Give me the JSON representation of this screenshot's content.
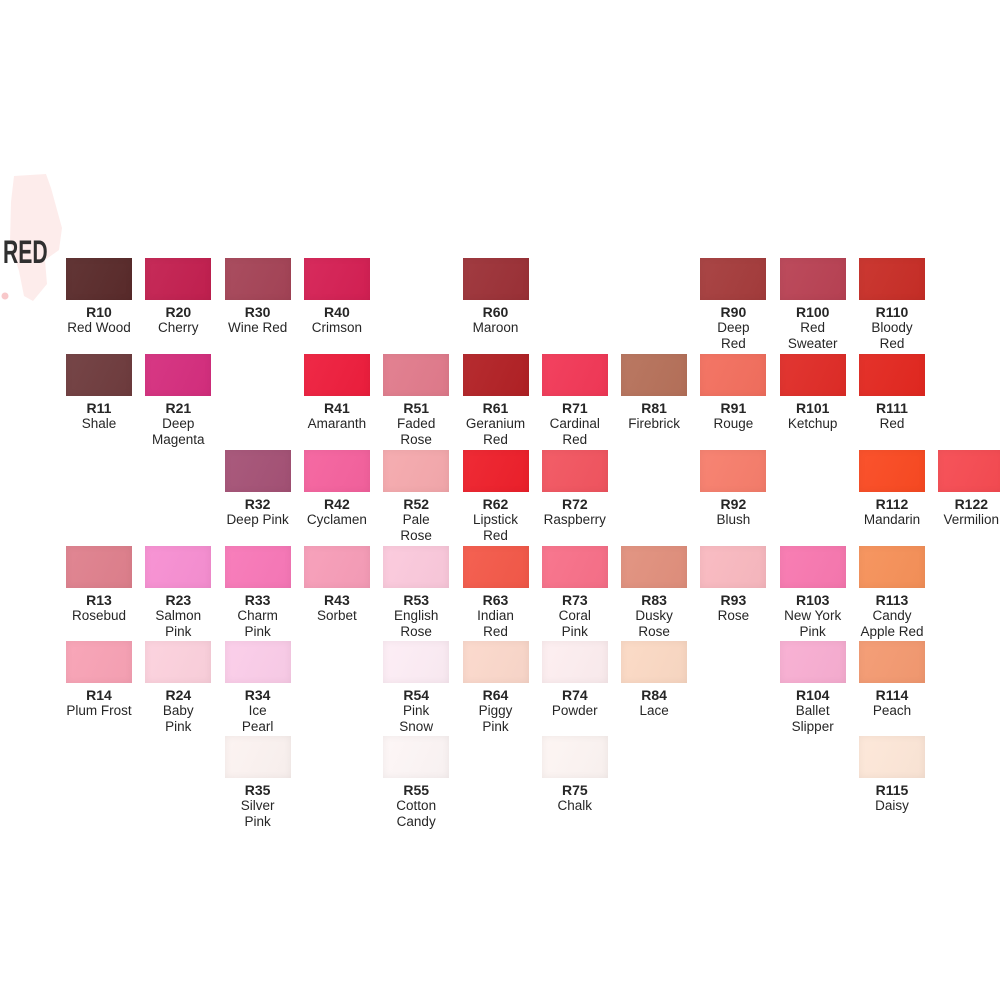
{
  "header": {
    "label": "RED",
    "text_color": "#2f2f2f",
    "blob_color": "#fdeceb",
    "blob_speck_color": "#f8c8ca"
  },
  "grid": {
    "columns": 12,
    "col_start": 66,
    "col_pitch": 79.3,
    "row_starts": [
      258,
      354,
      450,
      546,
      641,
      736
    ],
    "swatch_w": 66,
    "swatch_h": 42
  },
  "chart_data": {
    "type": "table",
    "title": "RED",
    "columns": [
      "code",
      "name",
      "color",
      "row",
      "col"
    ],
    "swatches": [
      {
        "code": "R10",
        "name": "Red Wood",
        "color": "#5a2b2b",
        "row": 1,
        "col": 1
      },
      {
        "code": "R20",
        "name": "Cherry",
        "color": "#c32050",
        "row": 1,
        "col": 2
      },
      {
        "code": "R30",
        "name": "Wine Red",
        "color": "#a54457",
        "row": 1,
        "col": 3
      },
      {
        "code": "R40",
        "name": "Crimson",
        "color": "#d52054",
        "row": 1,
        "col": 4
      },
      {
        "code": "R60",
        "name": "Maroon",
        "color": "#9c3137",
        "row": 1,
        "col": 6
      },
      {
        "code": "R90",
        "name": "Deep\nRed",
        "color": "#a53c3c",
        "row": 1,
        "col": 9
      },
      {
        "code": "R100",
        "name": "Red\nSweater",
        "color": "#b94254",
        "row": 1,
        "col": 10
      },
      {
        "code": "R110",
        "name": "Bloody\nRed",
        "color": "#c82e27",
        "row": 1,
        "col": 11
      },
      {
        "code": "R11",
        "name": "Shale",
        "color": "#6f3c3e",
        "row": 2,
        "col": 1
      },
      {
        "code": "R21",
        "name": "Deep\nMagenta",
        "color": "#d52e7e",
        "row": 2,
        "col": 2
      },
      {
        "code": "R41",
        "name": "Amaranth",
        "color": "#ee1e3d",
        "row": 2,
        "col": 4
      },
      {
        "code": "R51",
        "name": "Faded\nRose",
        "color": "#e17b8c",
        "row": 2,
        "col": 5
      },
      {
        "code": "R61",
        "name": "Geranium\nRed",
        "color": "#b22125",
        "row": 2,
        "col": 6
      },
      {
        "code": "R71",
        "name": "Cardinal\nRed",
        "color": "#f23857",
        "row": 2,
        "col": 7
      },
      {
        "code": "R81",
        "name": "Firebrick",
        "color": "#b6715a",
        "row": 2,
        "col": 8
      },
      {
        "code": "R91",
        "name": "Rouge",
        "color": "#f36f5e",
        "row": 2,
        "col": 9
      },
      {
        "code": "R101",
        "name": "Ketchup",
        "color": "#e02c27",
        "row": 2,
        "col": 10
      },
      {
        "code": "R111",
        "name": "Red",
        "color": "#e32820",
        "row": 2,
        "col": 11
      },
      {
        "code": "R32",
        "name": "Deep Pink",
        "color": "#a55276",
        "row": 3,
        "col": 3
      },
      {
        "code": "R42",
        "name": "Cyclamen",
        "color": "#f5629e",
        "row": 3,
        "col": 4
      },
      {
        "code": "R52",
        "name": "Pale\nRose",
        "color": "#f5a9ad",
        "row": 3,
        "col": 5
      },
      {
        "code": "R62",
        "name": "Lipstick\nRed",
        "color": "#ee202b",
        "row": 3,
        "col": 6
      },
      {
        "code": "R72",
        "name": "Raspberry",
        "color": "#f25560",
        "row": 3,
        "col": 7
      },
      {
        "code": "R92",
        "name": "Blush",
        "color": "#f77e6c",
        "row": 3,
        "col": 9
      },
      {
        "code": "R112",
        "name": "Mandarin",
        "color": "#fa4a22",
        "row": 3,
        "col": 11
      },
      {
        "code": "R122",
        "name": "Vermilion",
        "color": "#f64b52",
        "row": 3,
        "col": 12
      },
      {
        "code": "R13",
        "name": "Rosebud",
        "color": "#df808d",
        "row": 4,
        "col": 1
      },
      {
        "code": "R23",
        "name": "Salmon\nPink",
        "color": "#f78fd2",
        "row": 4,
        "col": 2
      },
      {
        "code": "R33",
        "name": "Charm\nPink",
        "color": "#f878b8",
        "row": 4,
        "col": 3
      },
      {
        "code": "R43",
        "name": "Sorbet",
        "color": "#f79db8",
        "row": 4,
        "col": 4
      },
      {
        "code": "R53",
        "name": "English\nRose",
        "color": "#fbc9dc",
        "row": 4,
        "col": 5
      },
      {
        "code": "R63",
        "name": "Indian\nRed",
        "color": "#f45949",
        "row": 4,
        "col": 6
      },
      {
        "code": "R73",
        "name": "Coral\nPink",
        "color": "#f87089",
        "row": 4,
        "col": 7
      },
      {
        "code": "R83",
        "name": "Dusky\nRose",
        "color": "#e1907d",
        "row": 4,
        "col": 8
      },
      {
        "code": "R93",
        "name": "Rose",
        "color": "#f9b9c0",
        "row": 4,
        "col": 9
      },
      {
        "code": "R103",
        "name": "New York\nPink",
        "color": "#f878b0",
        "row": 4,
        "col": 10
      },
      {
        "code": "R113",
        "name": "Candy\nApple Red",
        "color": "#f69159",
        "row": 4,
        "col": 11
      },
      {
        "code": "R14",
        "name": "Plum Frost",
        "color": "#f8a2b5",
        "row": 5,
        "col": 1
      },
      {
        "code": "R24",
        "name": "Baby\nPink",
        "color": "#fcd1dd",
        "row": 5,
        "col": 2
      },
      {
        "code": "R34",
        "name": "Ice\nPearl",
        "color": "#fbcde9",
        "row": 5,
        "col": 3
      },
      {
        "code": "R54",
        "name": "Pink\nSnow",
        "color": "#fdedf5",
        "row": 5,
        "col": 5
      },
      {
        "code": "R64",
        "name": "Piggy\nPink",
        "color": "#fbd8cb",
        "row": 5,
        "col": 6
      },
      {
        "code": "R74",
        "name": "Powder",
        "color": "#fdeef0",
        "row": 5,
        "col": 7
      },
      {
        "code": "R84",
        "name": "Lace",
        "color": "#fbd9c4",
        "row": 5,
        "col": 8
      },
      {
        "code": "R104",
        "name": "Ballet\nSlipper",
        "color": "#f8aed2",
        "row": 5,
        "col": 10
      },
      {
        "code": "R114",
        "name": "Peach",
        "color": "#f49a71",
        "row": 5,
        "col": 11
      },
      {
        "code": "R35",
        "name": "Silver\nPink",
        "color": "#fcf3f1",
        "row": 6,
        "col": 3
      },
      {
        "code": "R55",
        "name": "Cotton\nCandy",
        "color": "#fdf6f6",
        "row": 6,
        "col": 5
      },
      {
        "code": "R75",
        "name": "Chalk",
        "color": "#fdf5f3",
        "row": 6,
        "col": 7
      },
      {
        "code": "R115",
        "name": "Daisy",
        "color": "#fde7d8",
        "row": 6,
        "col": 11
      }
    ]
  }
}
